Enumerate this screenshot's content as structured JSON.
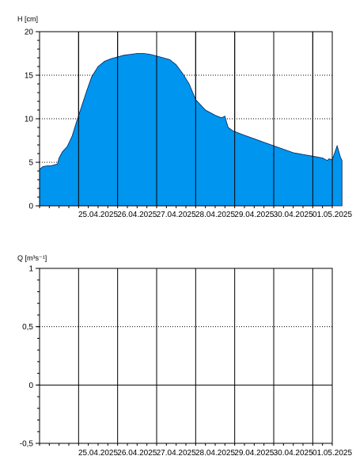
{
  "chart_data": [
    {
      "type": "area",
      "ylabel": "H [cm]",
      "ylim": [
        0,
        20
      ],
      "yticks": [
        "0",
        "5",
        "10",
        "15",
        "20"
      ],
      "xlim": [
        "2025-04-24T00:00",
        "2025-05-01T12:00"
      ],
      "xticks": [
        "25.04.2025",
        "26.04.2025",
        "27.04.2025",
        "28.04.2025",
        "29.04.2025",
        "30.04.2025",
        "01.05.2025"
      ],
      "grid": true,
      "fill_color": "#0095EE",
      "series": [
        {
          "x": [
            "2025-04-24T00:00",
            "2025-04-24T02:00",
            "2025-04-24T05:00",
            "2025-04-24T07:00",
            "2025-04-24T09:00",
            "2025-04-24T11:00",
            "2025-04-24T12:00",
            "2025-04-24T14:00",
            "2025-04-24T17:00",
            "2025-04-24T20:00",
            "2025-04-24T23:00",
            "2025-04-25T02:00",
            "2025-04-25T05:00",
            "2025-04-25T08:00",
            "2025-04-25T12:00",
            "2025-04-25T16:00",
            "2025-04-25T20:00",
            "2025-04-26T00:00",
            "2025-04-26T04:00",
            "2025-04-26T08:00",
            "2025-04-26T12:00",
            "2025-04-26T16:00",
            "2025-04-26T20:00",
            "2025-04-27T00:00",
            "2025-04-27T04:00",
            "2025-04-27T08:00",
            "2025-04-27T12:00",
            "2025-04-27T16:00",
            "2025-04-27T20:00",
            "2025-04-28T00:00",
            "2025-04-28T06:00",
            "2025-04-28T12:00",
            "2025-04-28T16:00",
            "2025-04-28T18:00",
            "2025-04-28T19:00",
            "2025-04-28T20:00",
            "2025-04-28T23:00",
            "2025-04-29T06:00",
            "2025-04-29T12:00",
            "2025-04-29T18:00",
            "2025-04-30T00:00",
            "2025-04-30T06:00",
            "2025-04-30T12:00",
            "2025-04-30T18:00",
            "2025-05-01T00:00",
            "2025-05-01T06:00",
            "2025-05-01T08:00",
            "2025-05-01T09:00",
            "2025-05-01T10:00",
            "2025-05-01T12:00",
            "2025-05-01T15:00",
            "2025-05-01T17:00",
            "2025-05-01T18:00"
          ],
          "values": [
            4.2,
            4.5,
            4.6,
            4.6,
            4.7,
            4.8,
            5.5,
            6.2,
            6.8,
            8.0,
            9.8,
            11.5,
            13.2,
            14.8,
            16.0,
            16.6,
            16.9,
            17.1,
            17.3,
            17.4,
            17.5,
            17.5,
            17.4,
            17.2,
            17.0,
            16.8,
            16.2,
            15.2,
            14.0,
            12.2,
            11.0,
            10.4,
            10.1,
            10.3,
            9.6,
            9.0,
            8.6,
            8.1,
            7.7,
            7.3,
            6.9,
            6.5,
            6.1,
            5.9,
            5.7,
            5.5,
            5.3,
            5.2,
            5.4,
            5.3,
            6.9,
            5.6,
            5.2
          ]
        }
      ]
    },
    {
      "type": "line",
      "ylabel": "Q [m³s⁻¹]",
      "ylim": [
        -0.5,
        1
      ],
      "yticks": [
        "-0,5",
        "0",
        "0,5",
        "1"
      ],
      "xlim": [
        "2025-04-24T00:00",
        "2025-05-01T12:00"
      ],
      "xticks": [
        "25.04.2025",
        "26.04.2025",
        "27.04.2025",
        "28.04.2025",
        "29.04.2025",
        "30.04.2025",
        "01.05.2025"
      ],
      "grid": true,
      "series": []
    }
  ]
}
